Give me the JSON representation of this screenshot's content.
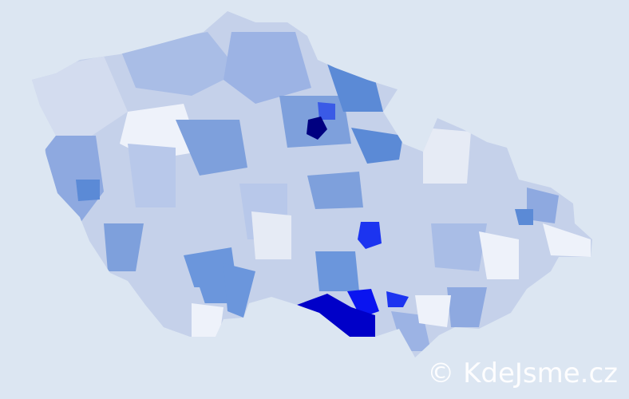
{
  "watermark": "© KdeJsme.cz",
  "colors": {
    "background": "#dce6f2",
    "lowest": "#eef2fa",
    "light": "#c5d1ea",
    "medium": "#a9bde6",
    "strong": "#6b96dc",
    "high": "#1c34f0",
    "highest": "#0000c8",
    "max": "#000080"
  }
}
